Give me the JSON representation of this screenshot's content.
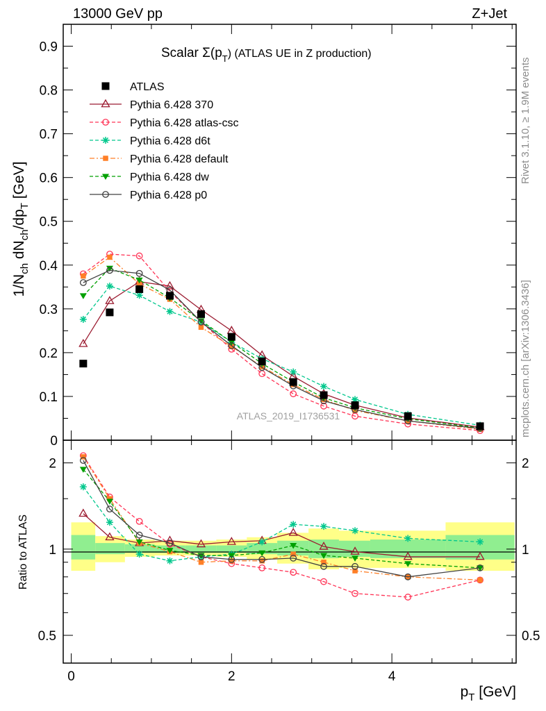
{
  "header": {
    "energy": "13000 GeV pp",
    "process": "Z+Jet",
    "side_top": "Rivet 3.1.10, ≥ 1.9M events",
    "side_bottom": "mcplots.cern.ch [arXiv:1306.3436]",
    "watermark": "ATLAS_2019_I1736531"
  },
  "chart_data": [
    {
      "type": "scatter",
      "panel": "main",
      "title": "Scalar Σ(p_T) (ATLAS UE in Z production)",
      "title_main": "Scalar Σ(p",
      "title_sub": "T",
      "title_rest": ") (ATLAS UE in Z production)",
      "ylabel": "1/N_ch dN_ch/dp_T [GeV]",
      "xlim": [
        -0.1,
        5.55
      ],
      "ylim": [
        0,
        0.95
      ],
      "yticks": [
        0,
        0.1,
        0.2,
        0.3,
        0.4,
        0.5,
        0.6,
        0.7,
        0.8,
        0.9
      ],
      "ytick_labels": [
        "0",
        "0.1",
        "0.2",
        "0.3",
        "0.4",
        "0.5",
        "0.6",
        "0.7",
        "0.8",
        "0.9"
      ],
      "x": [
        0.15,
        0.48,
        0.85,
        1.23,
        1.62,
        2.0,
        2.38,
        2.77,
        3.15,
        3.54,
        4.2,
        5.1
      ],
      "legend_position": "upper-left",
      "series": [
        {
          "name": "ATLAS",
          "color": "#000000",
          "marker": "square",
          "line": "none",
          "values": [
            0.175,
            0.292,
            0.345,
            0.33,
            0.288,
            0.236,
            0.18,
            0.133,
            0.103,
            0.08,
            0.055,
            0.032
          ]
        },
        {
          "name": "Pythia 6.428 370",
          "color": "#9b1b30",
          "marker": "triangle-open",
          "line": "solid",
          "values": [
            0.22,
            0.318,
            0.362,
            0.352,
            0.298,
            0.25,
            0.194,
            0.146,
            0.106,
            0.08,
            0.051,
            0.03
          ]
        },
        {
          "name": "Pythia 6.428 atlas-csc",
          "color": "#ff3355",
          "marker": "circle-open",
          "line": "dashed",
          "values": [
            0.38,
            0.425,
            0.421,
            0.34,
            0.27,
            0.208,
            0.152,
            0.106,
            0.078,
            0.055,
            0.037,
            0.022
          ]
        },
        {
          "name": "Pythia 6.428 d6t",
          "color": "#00c78c",
          "marker": "star",
          "line": "dashed",
          "values": [
            0.276,
            0.352,
            0.331,
            0.294,
            0.27,
            0.224,
            0.186,
            0.156,
            0.123,
            0.093,
            0.059,
            0.034
          ]
        },
        {
          "name": "Pythia 6.428 default",
          "color": "#ff7f27",
          "marker": "square-small",
          "line": "dashdot",
          "values": [
            0.375,
            0.418,
            0.357,
            0.322,
            0.258,
            0.214,
            0.168,
            0.127,
            0.093,
            0.068,
            0.044,
            0.025
          ]
        },
        {
          "name": "Pythia 6.428 dw",
          "color": "#00a000",
          "marker": "triangle-down",
          "line": "dashed",
          "values": [
            0.33,
            0.393,
            0.366,
            0.325,
            0.273,
            0.224,
            0.175,
            0.133,
            0.097,
            0.074,
            0.049,
            0.028
          ]
        },
        {
          "name": "Pythia 6.428 p0",
          "color": "#404040",
          "marker": "circle-open",
          "line": "solid",
          "values": [
            0.36,
            0.388,
            0.381,
            0.343,
            0.27,
            0.216,
            0.166,
            0.124,
            0.09,
            0.07,
            0.044,
            0.027
          ]
        }
      ]
    },
    {
      "type": "line",
      "panel": "ratio",
      "ylabel": "Ratio to ATLAS",
      "xlabel": "p_T [GeV]",
      "xlabel_main": "p",
      "xlabel_sub": "T",
      "xlabel_rest": " [GeV]",
      "xlim": [
        -0.1,
        5.55
      ],
      "ylim": [
        0.4,
        2.4
      ],
      "log_y": true,
      "yticks": [
        0.5,
        1,
        2
      ],
      "ytick_labels": [
        "0.5",
        "1",
        "2"
      ],
      "xticks": [
        0,
        2,
        4
      ],
      "xtick_labels": [
        "0",
        "2",
        "4"
      ],
      "x": [
        0.15,
        0.48,
        0.85,
        1.23,
        1.62,
        2.0,
        2.38,
        2.77,
        3.15,
        3.54,
        4.2,
        5.1
      ],
      "bin_edges": [
        0.0,
        0.3,
        0.67,
        1.04,
        1.42,
        1.81,
        2.19,
        2.57,
        2.96,
        3.34,
        3.73,
        4.67,
        5.53
      ],
      "band_inner": [
        [
          0.92,
          1.12
        ],
        [
          0.96,
          1.05
        ],
        [
          0.97,
          1.04
        ],
        [
          0.97,
          1.03
        ],
        [
          0.97,
          1.03
        ],
        [
          0.97,
          1.03
        ],
        [
          0.96,
          1.05
        ],
        [
          0.95,
          1.07
        ],
        [
          0.93,
          1.08
        ],
        [
          0.94,
          1.07
        ],
        [
          0.93,
          1.08
        ],
        [
          0.92,
          1.12
        ]
      ],
      "band_outer": [
        [
          0.84,
          1.24
        ],
        [
          0.9,
          1.11
        ],
        [
          0.94,
          1.08
        ],
        [
          0.95,
          1.07
        ],
        [
          0.95,
          1.07
        ],
        [
          0.94,
          1.08
        ],
        [
          0.92,
          1.1
        ],
        [
          0.89,
          1.14
        ],
        [
          0.85,
          1.18
        ],
        [
          0.86,
          1.16
        ],
        [
          0.86,
          1.16
        ],
        [
          0.84,
          1.24
        ]
      ],
      "series": [
        {
          "name": "Pythia 6.428 370",
          "color": "#9b1b30",
          "marker": "triangle-open",
          "line": "solid",
          "values": [
            1.33,
            1.1,
            1.05,
            1.07,
            1.04,
            1.06,
            1.07,
            1.14,
            1.02,
            0.98,
            0.94,
            0.94
          ]
        },
        {
          "name": "Pythia 6.428 atlas-csc",
          "color": "#ff3355",
          "marker": "circle-open",
          "line": "dashed",
          "values": [
            2.12,
            1.52,
            1.25,
            1.04,
            0.94,
            0.89,
            0.86,
            0.83,
            0.77,
            0.7,
            0.68,
            0.78
          ]
        },
        {
          "name": "Pythia 6.428 d6t",
          "color": "#00c78c",
          "marker": "star",
          "line": "dashed",
          "values": [
            1.65,
            1.24,
            0.96,
            0.91,
            0.94,
            0.96,
            1.06,
            1.22,
            1.2,
            1.16,
            1.09,
            1.06
          ]
        },
        {
          "name": "Pythia 6.428 default",
          "color": "#ff7f27",
          "marker": "square-small",
          "line": "dashdot",
          "values": [
            2.1,
            1.5,
            1.05,
            0.98,
            0.9,
            0.91,
            0.91,
            0.96,
            0.9,
            0.84,
            0.8,
            0.78
          ]
        },
        {
          "name": "Pythia 6.428 dw",
          "color": "#00a000",
          "marker": "triangle-down",
          "line": "dashed",
          "values": [
            1.9,
            1.47,
            1.06,
            0.99,
            0.95,
            0.95,
            0.97,
            1.03,
            0.95,
            0.93,
            0.89,
            0.86
          ]
        },
        {
          "name": "Pythia 6.428 p0",
          "color": "#404040",
          "marker": "circle-open",
          "line": "solid",
          "values": [
            2.04,
            1.38,
            1.12,
            1.05,
            0.94,
            0.92,
            0.92,
            0.93,
            0.87,
            0.87,
            0.8,
            0.86
          ]
        }
      ]
    }
  ]
}
